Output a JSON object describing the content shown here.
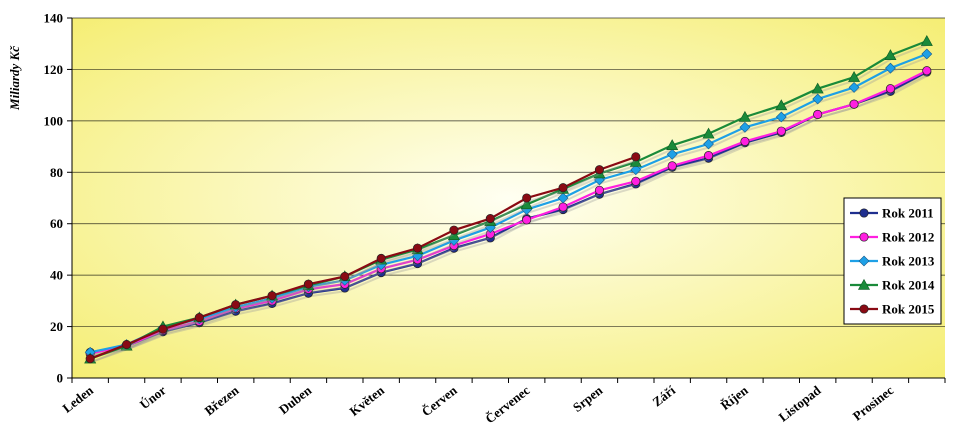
{
  "chart_data": {
    "type": "line",
    "title": "",
    "xlabel": "",
    "ylabel": "Miliardy Kč",
    "ylim": [
      0,
      140
    ],
    "yticks": [
      0,
      20,
      40,
      60,
      80,
      100,
      120,
      140
    ],
    "grid": "horizontal",
    "legend_position": "right",
    "background": {
      "edge": "#f5ee75",
      "center": "#fffff2"
    },
    "month_labels": [
      "Leden",
      "Únor",
      "Březen",
      "Duben",
      "Květen",
      "Červen",
      "Červenec",
      "Srpen",
      "Září",
      "Říjen",
      "Listopad",
      "Prosinec"
    ],
    "series": [
      {
        "name": "Rok 2011",
        "color": "#1f2f8f",
        "marker": "circle",
        "values": [
          10,
          12.5,
          18,
          21.5,
          26,
          29,
          33,
          35,
          41,
          44.5,
          50.5,
          54.5,
          62,
          65.5,
          71.5,
          75.5,
          82,
          85.5,
          91.5,
          95.5,
          102.5,
          106.5,
          111.5,
          119
        ]
      },
      {
        "name": "Rok 2012",
        "color": "#ff1fe0",
        "marker": "circle",
        "values": [
          9.5,
          12.5,
          18.5,
          22,
          27,
          30,
          34.5,
          36.5,
          42.5,
          46,
          51.5,
          56,
          61.5,
          66.5,
          73,
          76.5,
          82.5,
          86.5,
          92,
          96,
          102.5,
          106.5,
          112.5,
          119.5
        ]
      },
      {
        "name": "Rok 2013",
        "color": "#1ea0e6",
        "marker": "diamond",
        "values": [
          10,
          13,
          19.5,
          23,
          27.5,
          31,
          35.5,
          38,
          44,
          47.5,
          53.5,
          58.5,
          65.5,
          70,
          77,
          81,
          87,
          91,
          97.5,
          101.5,
          108.5,
          113,
          120.5,
          126
        ]
      },
      {
        "name": "Rok 2014",
        "color": "#1a8a3a",
        "marker": "triangle",
        "values": [
          7.5,
          12.5,
          20,
          23.5,
          28.5,
          32,
          36,
          39.5,
          46,
          50,
          55.5,
          61,
          67.5,
          73.5,
          79.5,
          84,
          90.5,
          95,
          101.5,
          106,
          112.5,
          117,
          125.5,
          131
        ]
      },
      {
        "name": "Rok 2015",
        "color": "#8a0a14",
        "marker": "circle",
        "values": [
          7.5,
          13,
          19,
          23.5,
          28.5,
          32,
          36.5,
          39.5,
          46.5,
          50.5,
          57.5,
          62,
          70,
          74,
          81,
          86
        ]
      }
    ]
  }
}
